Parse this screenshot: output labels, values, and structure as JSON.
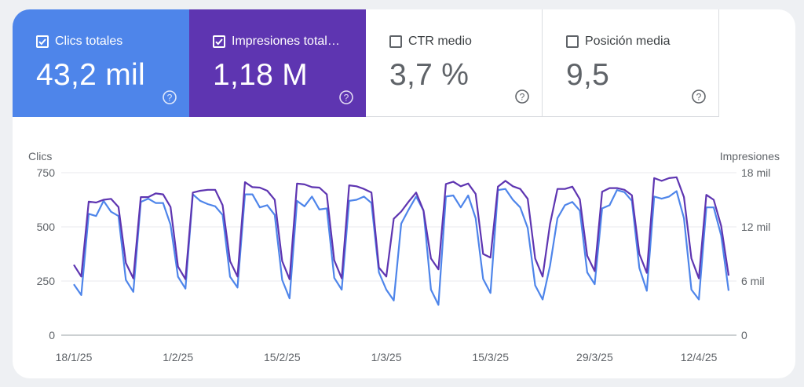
{
  "metrics": [
    {
      "label": "Clics totales",
      "value": "43,2 mil",
      "checked": true,
      "color": "#4e85ea"
    },
    {
      "label": "Impresiones total…",
      "value": "1,18 M",
      "checked": true,
      "color": "#5e35b1"
    },
    {
      "label": "CTR medio",
      "value": "3,7 %",
      "checked": false,
      "color": "#ffffff"
    },
    {
      "label": "Posición media",
      "value": "9,5",
      "checked": false,
      "color": "#ffffff"
    }
  ],
  "chart_data": {
    "type": "line",
    "title": "",
    "x_tick_labels": [
      "18/1/25",
      "1/2/25",
      "15/2/25",
      "1/3/25",
      "15/3/25",
      "29/3/25",
      "12/4/25"
    ],
    "x_tick_index": [
      0,
      14,
      28,
      42,
      56,
      70,
      84
    ],
    "left_axis": {
      "label": "Clics",
      "ticks": [
        0,
        250,
        500,
        750
      ],
      "tick_labels": [
        "0",
        "250",
        "500",
        "750"
      ],
      "ylim": [
        0,
        750
      ]
    },
    "right_axis": {
      "label": "Impresiones",
      "ticks": [
        0,
        6000,
        12000,
        18000
      ],
      "tick_labels": [
        "0",
        "6 mil",
        "12 mil",
        "18 mil"
      ],
      "ylim": [
        0,
        18000
      ]
    },
    "series": [
      {
        "name": "Clics totales",
        "axis": "left",
        "color": "#4e85ea",
        "values": [
          235,
          185,
          560,
          550,
          620,
          570,
          550,
          255,
          200,
          615,
          630,
          610,
          610,
          510,
          270,
          215,
          650,
          620,
          605,
          595,
          555,
          270,
          220,
          650,
          650,
          590,
          600,
          555,
          255,
          170,
          620,
          595,
          640,
          580,
          585,
          265,
          210,
          620,
          625,
          640,
          610,
          290,
          210,
          160,
          515,
          580,
          640,
          575,
          210,
          140,
          640,
          645,
          590,
          645,
          540,
          260,
          195,
          670,
          675,
          625,
          590,
          495,
          230,
          165,
          320,
          540,
          600,
          615,
          575,
          290,
          235,
          585,
          600,
          670,
          660,
          620,
          310,
          205,
          640,
          630,
          640,
          665,
          540,
          210,
          165,
          590,
          590,
          460,
          205
        ]
      },
      {
        "name": "Impresiones",
        "axis": "right",
        "color": "#5e35b1",
        "values": [
          7800,
          6500,
          14800,
          14700,
          15000,
          15100,
          14200,
          8000,
          6300,
          15300,
          15300,
          15700,
          15600,
          14200,
          7600,
          6200,
          15800,
          16000,
          16100,
          16100,
          14400,
          8200,
          6500,
          16950,
          16400,
          16350,
          16000,
          15000,
          8200,
          6200,
          16800,
          16700,
          16400,
          16350,
          15600,
          8300,
          6300,
          16600,
          16500,
          16200,
          15800,
          7500,
          6500,
          12900,
          13700,
          14800,
          15800,
          13800,
          8500,
          7300,
          16750,
          17000,
          16500,
          16800,
          15650,
          9000,
          8600,
          16450,
          17100,
          16500,
          16200,
          15100,
          8500,
          6500,
          12300,
          16200,
          16200,
          16450,
          15050,
          8800,
          7100,
          15900,
          16300,
          16300,
          16100,
          15500,
          9000,
          6900,
          17400,
          17100,
          17400,
          17500,
          15300,
          8500,
          6300,
          15550,
          15000,
          12100,
          6600
        ]
      }
    ]
  }
}
